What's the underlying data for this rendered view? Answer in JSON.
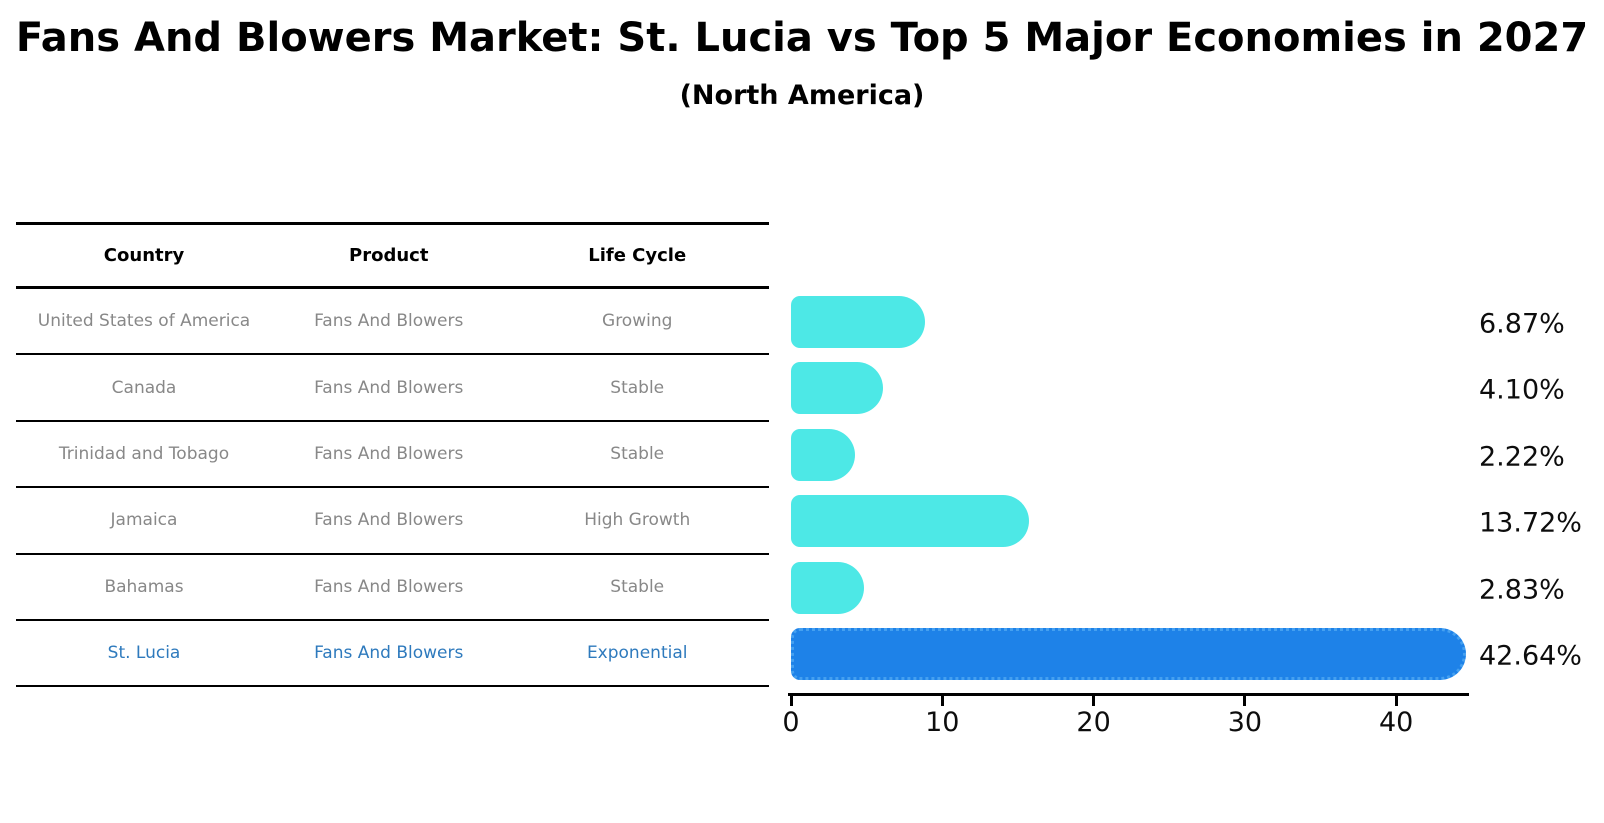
{
  "header": {
    "title": "Fans And Blowers Market: St. Lucia vs Top 5 Major Economies in 2027",
    "subtitle": "(North America)"
  },
  "table": {
    "headers": [
      "Country",
      "Product",
      "Life Cycle"
    ],
    "rows": [
      {
        "country": "United States of America",
        "product": "Fans And Blowers",
        "life_cycle": "Growing"
      },
      {
        "country": "Canada",
        "product": "Fans And Blowers",
        "life_cycle": "Stable"
      },
      {
        "country": "Trinidad and Tobago",
        "product": "Fans And Blowers",
        "life_cycle": "Stable"
      },
      {
        "country": "Jamaica",
        "product": "Fans And Blowers",
        "life_cycle": "High Growth"
      },
      {
        "country": "Bahamas",
        "product": "Fans And Blowers",
        "life_cycle": "Stable"
      },
      {
        "country": "St. Lucia",
        "product": "Fans And Blowers",
        "life_cycle": "Exponential"
      }
    ],
    "highlight_row_index": 5,
    "text_color": "#888888",
    "highlight_text_color": "#2e7abd"
  },
  "chart_data": {
    "type": "bar",
    "orientation": "horizontal",
    "title": "Fans And Blowers Market: St. Lucia vs Top 5 Major Economies in 2027",
    "subtitle": "(North America)",
    "categories": [
      "United States of America",
      "Canada",
      "Trinidad and Tobago",
      "Jamaica",
      "Bahamas",
      "St. Lucia"
    ],
    "values": [
      6.87,
      4.1,
      2.22,
      13.72,
      2.83,
      42.64
    ],
    "value_labels": [
      "6.87%",
      "4.10%",
      "2.22%",
      "13.72%",
      "2.83%",
      "42.64%"
    ],
    "xlabel": "",
    "ylabel": "",
    "xlim": [
      0,
      45
    ],
    "x_ticks": [
      0,
      10,
      20,
      30,
      40
    ],
    "grid": false,
    "legend": false,
    "bar_color": "#4DE8E6",
    "highlight_bar_color": "#1E82E8",
    "highlight_index": 5
  }
}
